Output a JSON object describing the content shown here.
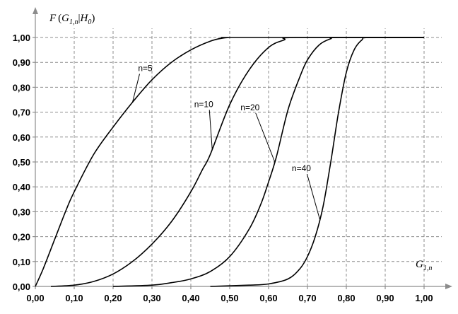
{
  "chart_data": {
    "type": "line",
    "title": "",
    "ylabel": "F(G1,n|H0)",
    "xlabel": "G1,n",
    "xlim": [
      0,
      1
    ],
    "ylim": [
      0,
      1
    ],
    "grid": true,
    "x_ticks": [
      "0,00",
      "0,10",
      "0,20",
      "0,30",
      "0,40",
      "0,50",
      "0,60",
      "0,70",
      "0,80",
      "0,90",
      "1,00"
    ],
    "y_ticks": [
      "0,00",
      "0,10",
      "0,20",
      "0,30",
      "0,40",
      "0,50",
      "0,60",
      "0,70",
      "0,80",
      "0,90",
      "1,00"
    ],
    "series": [
      {
        "name": "n=5",
        "x": [
          0,
          0.02,
          0.05,
          0.08,
          0.1,
          0.15,
          0.2,
          0.25,
          0.3,
          0.35,
          0.4,
          0.45,
          0.48,
          0.5,
          0.52,
          1.0
        ],
        "y": [
          0,
          0.07,
          0.19,
          0.31,
          0.38,
          0.53,
          0.64,
          0.74,
          0.83,
          0.9,
          0.95,
          0.985,
          0.997,
          1.0,
          1.0,
          1.0
        ]
      },
      {
        "name": "n=10",
        "x": [
          0.04,
          0.1,
          0.15,
          0.2,
          0.25,
          0.3,
          0.35,
          0.4,
          0.43,
          0.45,
          0.5,
          0.55,
          0.6,
          0.64,
          0.67,
          1.0
        ],
        "y": [
          0,
          0.005,
          0.02,
          0.05,
          0.1,
          0.17,
          0.26,
          0.38,
          0.47,
          0.53,
          0.73,
          0.87,
          0.96,
          0.99,
          1.0,
          1.0
        ]
      },
      {
        "name": "n=20",
        "x": [
          0.2,
          0.3,
          0.35,
          0.4,
          0.45,
          0.5,
          0.55,
          0.58,
          0.6,
          0.62,
          0.65,
          0.68,
          0.7,
          0.73,
          0.76,
          0.78,
          1.0
        ],
        "y": [
          0,
          0.005,
          0.015,
          0.03,
          0.06,
          0.12,
          0.23,
          0.33,
          0.42,
          0.52,
          0.71,
          0.84,
          0.91,
          0.97,
          0.995,
          1.0,
          1.0
        ]
      },
      {
        "name": "n=40",
        "x": [
          0.45,
          0.55,
          0.6,
          0.65,
          0.68,
          0.7,
          0.72,
          0.74,
          0.76,
          0.78,
          0.8,
          0.82,
          0.84,
          0.86,
          1.0
        ],
        "y": [
          0,
          0.005,
          0.01,
          0.03,
          0.07,
          0.12,
          0.2,
          0.32,
          0.5,
          0.7,
          0.86,
          0.95,
          0.99,
          1.0,
          1.0
        ]
      }
    ]
  }
}
